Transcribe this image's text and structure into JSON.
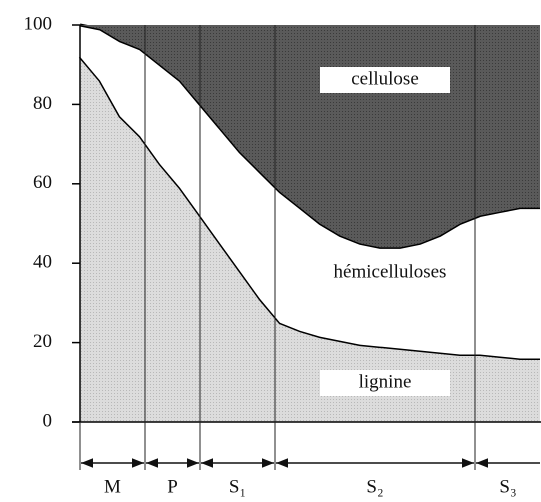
{
  "chart_data": {
    "type": "stacked_area",
    "categories": [
      null,
      null,
      null,
      null,
      null,
      null,
      null,
      null,
      null,
      null,
      null,
      null,
      null,
      null,
      null,
      null,
      null,
      null,
      null,
      null,
      null,
      null,
      null,
      null
    ],
    "layers": [
      "M",
      "P",
      "S₁",
      "S₂",
      "S₃"
    ],
    "series": [
      {
        "name": "lignine",
        "color": "#d9d9d9",
        "values": [
          92,
          86,
          77,
          72,
          65,
          59,
          52,
          45,
          38,
          31,
          25,
          23,
          21.5,
          20.5,
          19.5,
          19,
          18.5,
          18,
          17.5,
          17,
          17,
          16.5,
          16,
          16
        ]
      },
      {
        "name": "hémicelluloses",
        "color": "#ffffff",
        "values": [
          8,
          13,
          19,
          22,
          25,
          27,
          28,
          29,
          30,
          32,
          33,
          31,
          28.5,
          26.5,
          25.5,
          25,
          25.5,
          27,
          29.5,
          33,
          35,
          36.5,
          38,
          38
        ]
      },
      {
        "name": "cellulose",
        "color": "#555555",
        "values": [
          0,
          1,
          4,
          6,
          10,
          14,
          20,
          26,
          32,
          37,
          42,
          46,
          50,
          53,
          55,
          56,
          56,
          55,
          53,
          50,
          48,
          47,
          46,
          46
        ]
      }
    ],
    "ylim": [
      0,
      100
    ],
    "yticks": [
      0,
      20,
      40,
      60,
      80,
      100
    ]
  }
}
